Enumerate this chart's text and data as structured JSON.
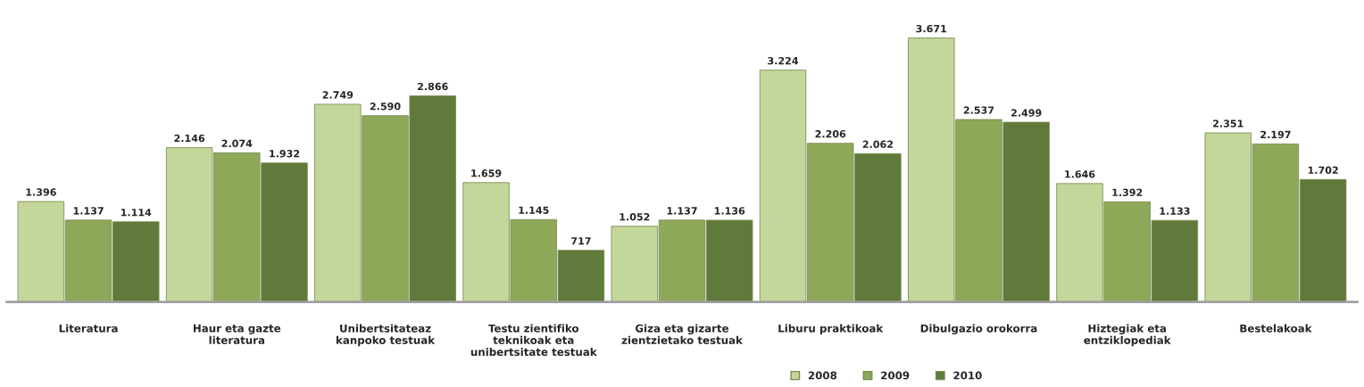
{
  "chart_data": {
    "type": "bar",
    "categories": [
      "Literatura",
      "Haur eta gazte\nliteratura",
      "Unibertsitateaz\nkanpoko testuak",
      "Testu zientifiko\nteknikoak eta\nunibertsitate testuak",
      "Giza eta gizarte\nzientzietako testuak",
      "Liburu praktikoak",
      "Dibulgazio orokorra",
      "Hiztegiak eta\nentziklopediak",
      "Bestelakoak"
    ],
    "series": [
      {
        "name": "2008",
        "color": "#c4d79b",
        "values": [
          1396,
          2146,
          2749,
          1659,
          1052,
          3224,
          3671,
          1646,
          2351
        ],
        "value_labels": [
          "1.396",
          "2.146",
          "2.749",
          "1.659",
          "1.052",
          "3.224",
          "3.671",
          "1.646",
          "2.351"
        ]
      },
      {
        "name": "2009",
        "color": "#8ea85a",
        "values": [
          1137,
          2074,
          2590,
          1145,
          1137,
          2206,
          2537,
          1392,
          2197
        ],
        "value_labels": [
          "1.137",
          "2.074",
          "2.590",
          "1.145",
          "1.137",
          "2.206",
          "2.537",
          "1.392",
          "2.197"
        ]
      },
      {
        "name": "2010",
        "color": "#5f7a3a",
        "values": [
          1114,
          1932,
          2866,
          717,
          1136,
          2062,
          2499,
          1133,
          1702
        ],
        "value_labels": [
          "1.114",
          "1.932",
          "2.866",
          "717",
          "1.136",
          "2.062",
          "2.499",
          "1.133",
          "1.702"
        ]
      }
    ],
    "legend": "bottom",
    "grid": false
  }
}
